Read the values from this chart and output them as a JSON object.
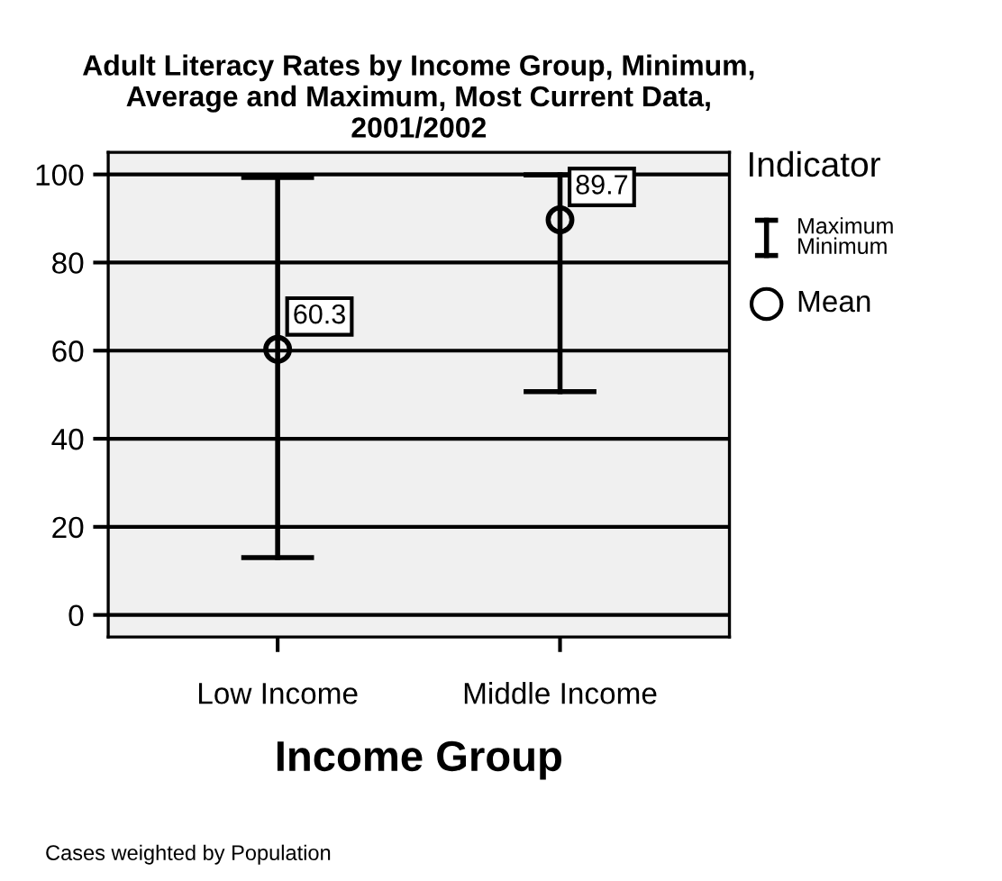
{
  "chart_data": {
    "type": "scatter",
    "title": "Adult Literacy Rates by Income Group, Minimum,\nAverage and Maximum, Most Current Data,\n2001/2002",
    "xlabel": "Income Group",
    "legend_title": "Indicator",
    "categories": [
      "Low Income",
      "Middle Income"
    ],
    "series": [
      {
        "name": "Mean",
        "color": "#000000",
        "values": [
          60.3,
          89.7
        ],
        "errors": [
          [
            13.0,
            99.3
          ],
          [
            50.7,
            99.9
          ]
        ],
        "value_labels": [
          "60.3",
          "89.7"
        ]
      }
    ],
    "annotations": [
      "Maximum\nMinimum",
      "Cases weighted by Population"
    ],
    "ylim": [
      -5,
      105
    ],
    "yticks": [
      0,
      20,
      40,
      60,
      80,
      100
    ],
    "grid": "y",
    "legend": "right",
    "marker": "circle"
  }
}
